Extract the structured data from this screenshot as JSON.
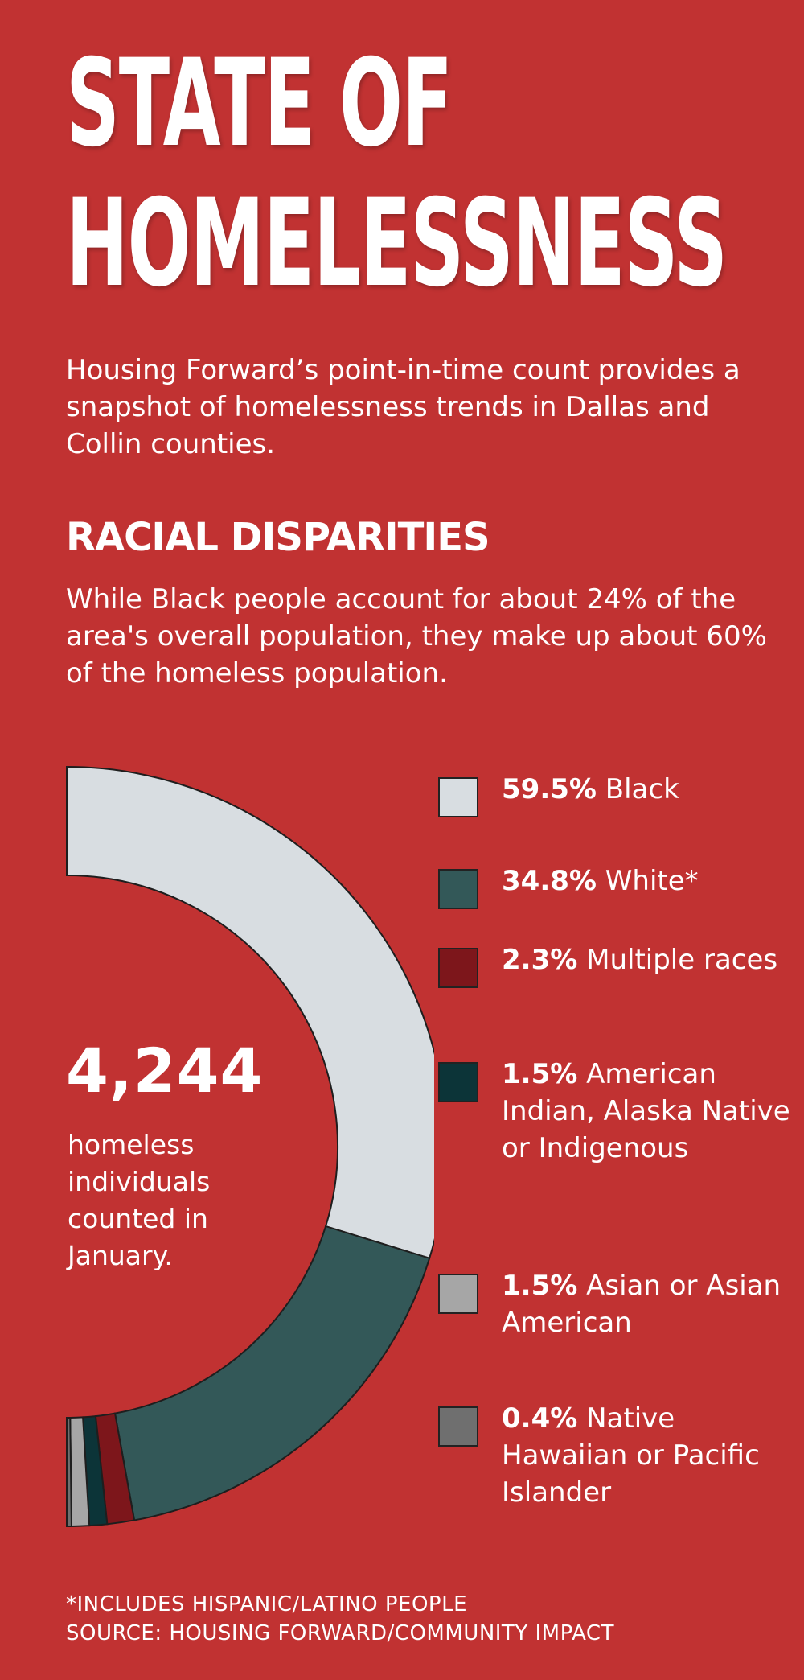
{
  "header": {
    "title_line1": "STATE OF",
    "title_line2": "HOMELESSNESS",
    "intro": "Housing Forward’s point-in-time count provides a snapshot of homelessness trends in Dallas and Collin counties."
  },
  "section": {
    "heading": "RACIAL DISPARITIES",
    "description": "While Black people account for about 24% of the area's overall population, they make up about 60% of the homeless population."
  },
  "center_stat": {
    "number": "4,244",
    "caption": "homeless individuals counted in January."
  },
  "legend": [
    {
      "pct": "59.5%",
      "label": "Black",
      "color": "#d8dde1"
    },
    {
      "pct": "34.8%",
      "label": "White*",
      "color": "#335858"
    },
    {
      "pct": "2.3%",
      "label": "Multiple races",
      "color": "#7d161b"
    },
    {
      "pct": "1.5%",
      "label": "American Indian, Alaska Native or Indigenous",
      "color": "#0c3438"
    },
    {
      "pct": "1.5%",
      "label": "Asian or Asian American",
      "color": "#a6a6a6"
    },
    {
      "pct": "0.4%",
      "label": "Native Hawaiian or Pacific Islander",
      "color": "#6f6f6f"
    }
  ],
  "footnote": {
    "line1": "*INCLUDES HISPANIC/LATINO PEOPLE",
    "line2": "SOURCE: HOUSING FORWARD/COMMUNITY IMPACT"
  },
  "chart_data": {
    "type": "pie",
    "categories": [
      "Black",
      "White*",
      "Multiple races",
      "American Indian, Alaska Native or Indigenous",
      "Asian or Asian American",
      "Native Hawaiian or Pacific Islander"
    ],
    "values": [
      59.5,
      34.8,
      2.3,
      1.5,
      1.5,
      0.4
    ],
    "colors": [
      "#d8dde1",
      "#335858",
      "#7d161b",
      "#0c3438",
      "#a6a6a6",
      "#6f6f6f"
    ],
    "style": "half-donut",
    "legend": "right"
  }
}
